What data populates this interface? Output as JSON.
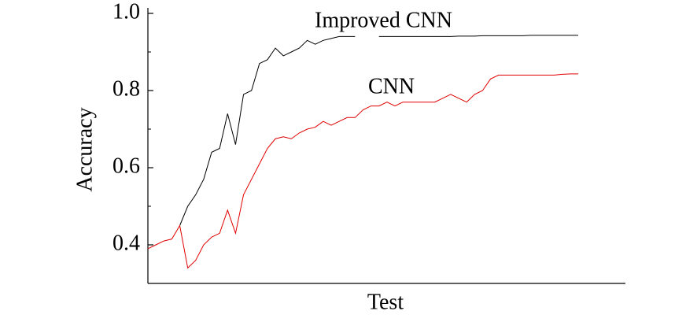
{
  "chart_data": {
    "type": "line",
    "xlabel": "Test",
    "ylabel": "Accuracy",
    "categories": [
      null,
      null,
      null,
      null,
      null,
      null,
      null,
      null,
      null,
      null,
      null,
      null,
      null,
      null,
      null,
      null,
      null,
      null,
      null,
      null,
      null,
      null,
      null,
      null,
      null,
      null,
      null,
      null,
      null,
      null,
      null,
      null,
      null,
      null,
      null,
      null,
      null,
      null,
      null,
      null,
      null,
      null,
      null,
      null,
      null,
      null,
      null,
      null,
      null,
      null,
      null,
      null,
      null,
      null,
      null
    ],
    "series": [
      {
        "name": "Improved CNN",
        "color": "#000000",
        "values": [
          null,
          null,
          null,
          null,
          0.45,
          0.5,
          0.53,
          0.57,
          0.64,
          0.65,
          0.74,
          0.66,
          0.79,
          0.8,
          0.87,
          0.88,
          0.91,
          0.89,
          0.9,
          0.91,
          0.93,
          0.92,
          0.93,
          0.935,
          0.94,
          0.94,
          0.94,
          null,
          null,
          0.94,
          0.94,
          0.94,
          0.94,
          0.94,
          0.94,
          0.94,
          0.94,
          0.94,
          0.94,
          0.941,
          0.941,
          0.941,
          0.942,
          0.942,
          0.942,
          0.942,
          0.942,
          0.942,
          0.943,
          0.943,
          0.943,
          0.943,
          0.943,
          0.943,
          0.943
        ]
      },
      {
        "name": "CNN",
        "color": "#e00000",
        "values": [
          0.39,
          0.4,
          0.41,
          0.415,
          0.45,
          0.34,
          0.36,
          0.4,
          0.42,
          0.43,
          0.49,
          0.43,
          0.53,
          0.57,
          0.61,
          0.65,
          0.675,
          0.68,
          0.675,
          0.69,
          0.7,
          0.705,
          0.72,
          0.71,
          0.72,
          0.73,
          0.73,
          0.75,
          0.76,
          0.76,
          0.77,
          0.76,
          0.77,
          0.77,
          0.77,
          0.77,
          0.77,
          0.78,
          0.79,
          0.78,
          0.77,
          0.79,
          0.8,
          0.83,
          0.84,
          0.84,
          0.84,
          0.84,
          0.84,
          0.84,
          0.84,
          0.84,
          0.842,
          0.843,
          0.843
        ]
      }
    ],
    "ylim": [
      0.3,
      1.0
    ],
    "yticks": [
      0.4,
      0.6,
      0.8,
      {
        "value": 1,
        "label": "1.0"
      }
    ],
    "minor_yticks": [
      0.5,
      0.7,
      0.9
    ],
    "grid": false
  }
}
